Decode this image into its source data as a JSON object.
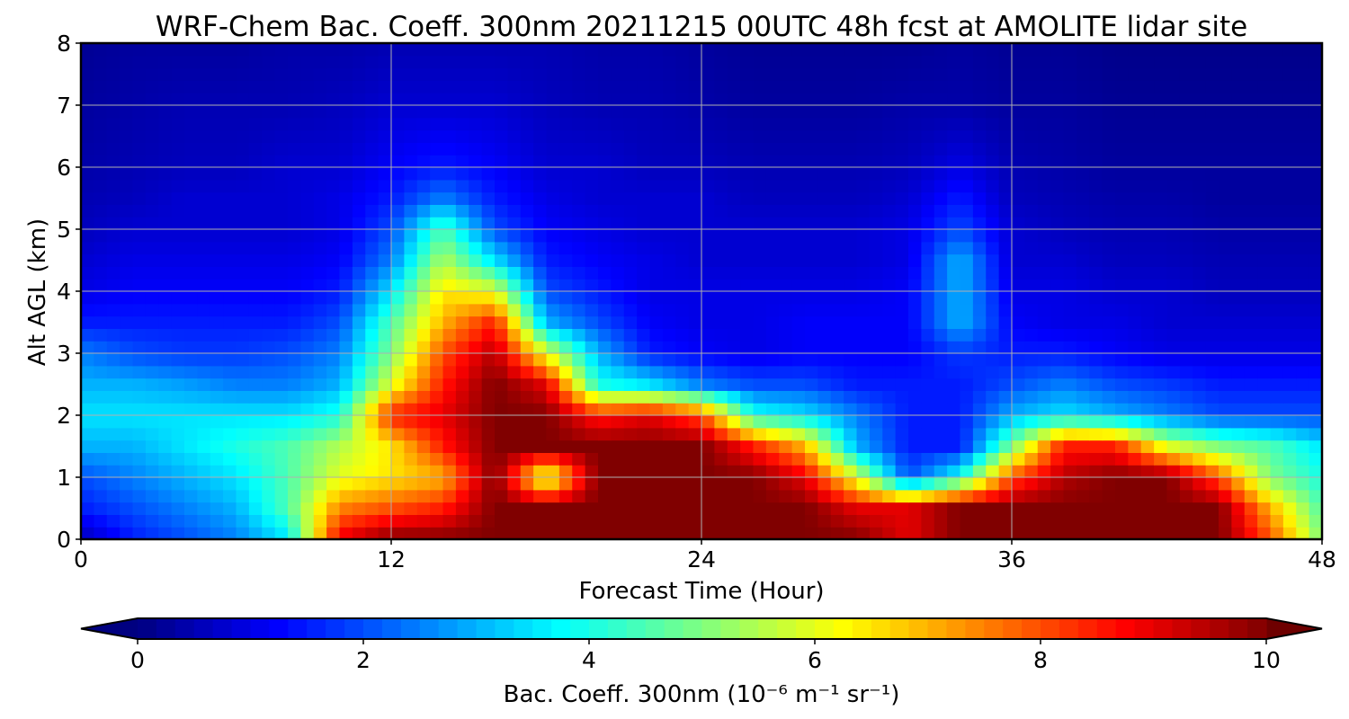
{
  "chart_data": {
    "type": "heatmap",
    "title": "WRF-Chem Bac. Coeff. 300nm  20211215 00UTC 48h fcst at AMOLITE lidar site",
    "xlabel": "Forecast Time (Hour)",
    "ylabel": "Alt AGL (km)",
    "xlim": [
      0,
      48
    ],
    "ylim": [
      0,
      8
    ],
    "x_ticks": [
      0,
      12,
      24,
      36,
      48
    ],
    "y_ticks": [
      0,
      1,
      2,
      3,
      4,
      5,
      6,
      7,
      8
    ],
    "grid": true,
    "colormap": "jet",
    "colorbar": {
      "label": "Bac. Coeff. 300nm  (10⁻⁶ m⁻¹ sr⁻¹)",
      "range": [
        0,
        10
      ],
      "ticks": [
        0,
        2,
        4,
        6,
        8,
        10
      ],
      "extend": "both",
      "orientation": "horizontal",
      "placement": "bottom"
    },
    "x": [
      0,
      2,
      4,
      6,
      8,
      10,
      12,
      14,
      16,
      18,
      20,
      22,
      24,
      26,
      28,
      30,
      32,
      34,
      36,
      38,
      40,
      42,
      44,
      46,
      48
    ],
    "y": [
      0,
      0.5,
      1,
      1.5,
      2,
      2.5,
      3,
      3.5,
      4,
      4.5,
      5,
      5.5,
      6,
      7,
      8
    ],
    "z": [
      [
        0.5,
        1.5,
        2.0,
        2.5,
        3.5,
        9.0,
        10.0,
        10.0,
        10.0,
        10.0,
        10.0,
        10.0,
        10.0,
        10.0,
        10.0,
        10.0,
        9.0,
        10.0,
        10.0,
        10.0,
        10.0,
        10.0,
        10.0,
        8.0,
        5.0
      ],
      [
        1.5,
        2.0,
        2.5,
        3.0,
        4.5,
        7.5,
        8.0,
        8.5,
        10.0,
        10.0,
        10.0,
        10.0,
        10.0,
        10.0,
        10.0,
        9.0,
        9.0,
        10.0,
        10.0,
        10.0,
        10.0,
        10.0,
        10.0,
        7.0,
        4.5
      ],
      [
        2.0,
        2.5,
        3.0,
        3.5,
        4.5,
        6.0,
        6.5,
        7.0,
        10.0,
        5.5,
        10.0,
        10.0,
        10.0,
        10.0,
        9.0,
        6.0,
        2.0,
        4.0,
        8.0,
        9.5,
        10.0,
        10.0,
        8.0,
        5.0,
        4.0
      ],
      [
        3.0,
        3.0,
        3.5,
        4.0,
        4.5,
        5.5,
        6.5,
        8.5,
        10.0,
        10.0,
        10.0,
        10.0,
        10.0,
        8.5,
        7.0,
        3.0,
        1.5,
        1.5,
        5.0,
        8.5,
        8.5,
        6.0,
        5.0,
        4.5,
        3.5
      ],
      [
        3.5,
        3.5,
        3.5,
        3.5,
        3.5,
        4.0,
        8.5,
        9.0,
        10.0,
        10.0,
        8.5,
        9.0,
        8.0,
        4.0,
        3.5,
        2.5,
        1.5,
        1.5,
        3.0,
        3.5,
        3.0,
        2.5,
        2.0,
        2.0,
        2.0
      ],
      [
        3.0,
        3.0,
        2.8,
        2.5,
        2.5,
        3.0,
        6.0,
        8.5,
        10.0,
        9.0,
        4.0,
        3.5,
        2.5,
        2.0,
        2.0,
        1.5,
        1.5,
        1.5,
        2.0,
        2.5,
        2.0,
        1.8,
        1.5,
        1.5,
        1.5
      ],
      [
        2.5,
        2.0,
        1.8,
        1.8,
        2.0,
        2.5,
        5.0,
        8.0,
        9.5,
        6.0,
        3.0,
        1.5,
        1.2,
        1.0,
        1.2,
        1.2,
        1.2,
        1.8,
        1.5,
        1.5,
        1.2,
        1.0,
        1.0,
        1.0,
        1.0
      ],
      [
        1.5,
        1.5,
        1.5,
        1.5,
        1.5,
        2.0,
        4.5,
        7.0,
        8.5,
        3.0,
        2.0,
        1.2,
        1.0,
        1.0,
        1.2,
        1.2,
        1.2,
        3.0,
        1.2,
        1.0,
        1.0,
        0.8,
        0.8,
        0.8,
        0.8
      ],
      [
        1.0,
        1.2,
        1.2,
        1.2,
        1.2,
        1.5,
        3.5,
        6.5,
        6.0,
        2.0,
        1.5,
        1.0,
        1.0,
        1.0,
        1.0,
        1.0,
        1.2,
        3.0,
        1.0,
        1.0,
        0.8,
        0.8,
        0.6,
        0.6,
        0.6
      ],
      [
        0.8,
        1.0,
        1.0,
        1.0,
        1.0,
        1.2,
        2.5,
        5.5,
        3.5,
        1.5,
        1.2,
        1.0,
        0.8,
        0.8,
        0.8,
        0.8,
        1.0,
        3.0,
        0.8,
        0.8,
        0.6,
        0.6,
        0.5,
        0.5,
        0.5
      ],
      [
        0.6,
        0.8,
        0.8,
        0.8,
        0.8,
        1.0,
        2.0,
        4.5,
        2.0,
        1.2,
        1.0,
        0.8,
        0.8,
        0.8,
        0.8,
        0.8,
        1.0,
        2.0,
        0.8,
        0.6,
        0.5,
        0.5,
        0.4,
        0.4,
        0.4
      ],
      [
        0.5,
        0.6,
        0.8,
        0.8,
        0.8,
        1.0,
        1.5,
        2.5,
        1.5,
        1.0,
        0.8,
        0.8,
        0.8,
        0.6,
        0.6,
        0.6,
        0.8,
        1.5,
        0.6,
        0.5,
        0.4,
        0.4,
        0.3,
        0.3,
        0.3
      ],
      [
        0.4,
        0.5,
        0.6,
        0.6,
        0.8,
        0.8,
        1.2,
        1.5,
        1.2,
        0.8,
        0.8,
        0.6,
        0.6,
        0.5,
        0.5,
        0.5,
        0.6,
        1.0,
        0.5,
        0.4,
        0.3,
        0.3,
        0.3,
        0.3,
        0.3
      ],
      [
        0.3,
        0.4,
        0.5,
        0.5,
        0.5,
        0.6,
        0.8,
        0.8,
        0.8,
        0.6,
        0.5,
        0.5,
        0.4,
        0.3,
        0.3,
        0.3,
        0.4,
        0.4,
        0.3,
        0.3,
        0.2,
        0.2,
        0.2,
        0.2,
        0.2
      ],
      [
        0.2,
        0.3,
        0.3,
        0.3,
        0.4,
        0.4,
        0.5,
        0.5,
        0.5,
        0.5,
        0.4,
        0.4,
        0.3,
        0.2,
        0.2,
        0.2,
        0.2,
        0.3,
        0.2,
        0.2,
        0.1,
        0.1,
        0.1,
        0.1,
        0.1
      ]
    ]
  }
}
